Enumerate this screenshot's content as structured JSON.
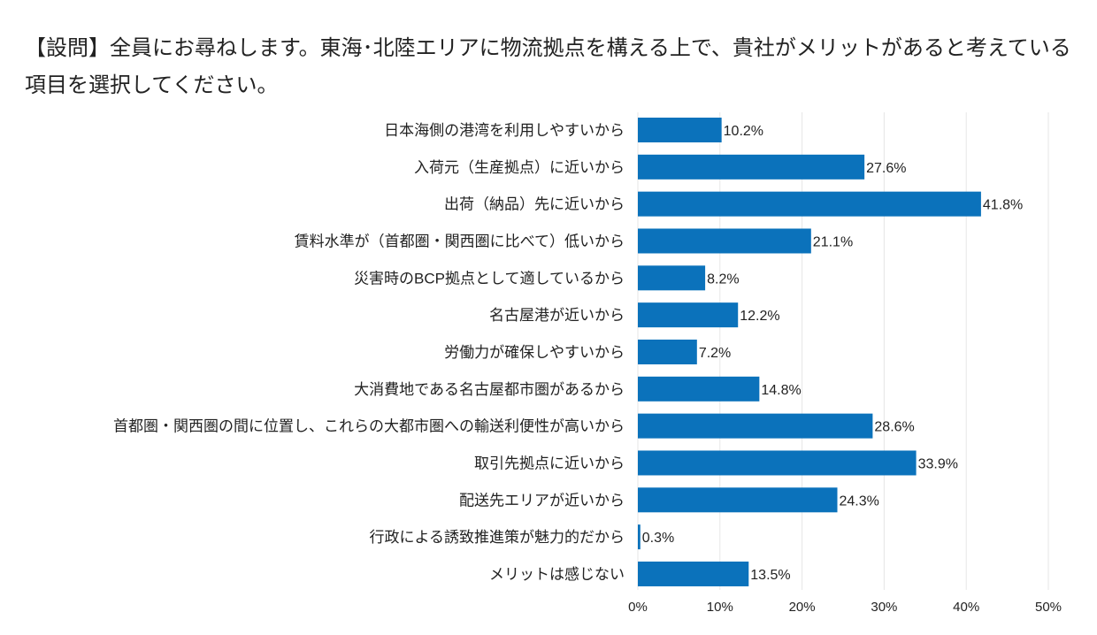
{
  "chart_data": {
    "type": "bar",
    "orientation": "horizontal",
    "title": "【設問】全員にお尋ねします。東海･北陸エリアに物流拠点を構える上で、貴社がメリットがあると考えている項目を選択してください。",
    "categories": [
      "日本海側の港湾を利用しやすいから",
      "入荷元（生産拠点）に近いから",
      "出荷（納品）先に近いから",
      "賃料水準が（首都圏・関西圏に比べて）低いから",
      "災害時のBCP拠点として適しているから",
      "名古屋港が近いから",
      "労働力が確保しやすいから",
      "大消費地である名古屋都市圏があるから",
      "首都圏・関西圏の間に位置し、これらの大都市圏への輸送利便性が高いから",
      "取引先拠点に近いから",
      "配送先エリアが近いから",
      "行政による誘致推進策が魅力的だから",
      "メリットは感じない"
    ],
    "values": [
      10.2,
      27.6,
      41.8,
      21.1,
      8.2,
      12.2,
      7.2,
      14.8,
      28.6,
      33.9,
      24.3,
      0.3,
      13.5
    ],
    "value_labels": [
      "10.2%",
      "27.6%",
      "41.8%",
      "21.1%",
      "8.2%",
      "12.2%",
      "7.2%",
      "14.8%",
      "28.6%",
      "33.9%",
      "24.3%",
      "0.3%",
      "13.5%"
    ],
    "xlim": [
      0,
      50
    ],
    "x_ticks": [
      0,
      10,
      20,
      30,
      40,
      50
    ],
    "x_tick_labels": [
      "0%",
      "10%",
      "20%",
      "30%",
      "40%",
      "50%"
    ],
    "xlabel": "",
    "ylabel": "",
    "grid": true,
    "bar_color": "#0B72BB",
    "grid_color": "#E6E6E6"
  }
}
